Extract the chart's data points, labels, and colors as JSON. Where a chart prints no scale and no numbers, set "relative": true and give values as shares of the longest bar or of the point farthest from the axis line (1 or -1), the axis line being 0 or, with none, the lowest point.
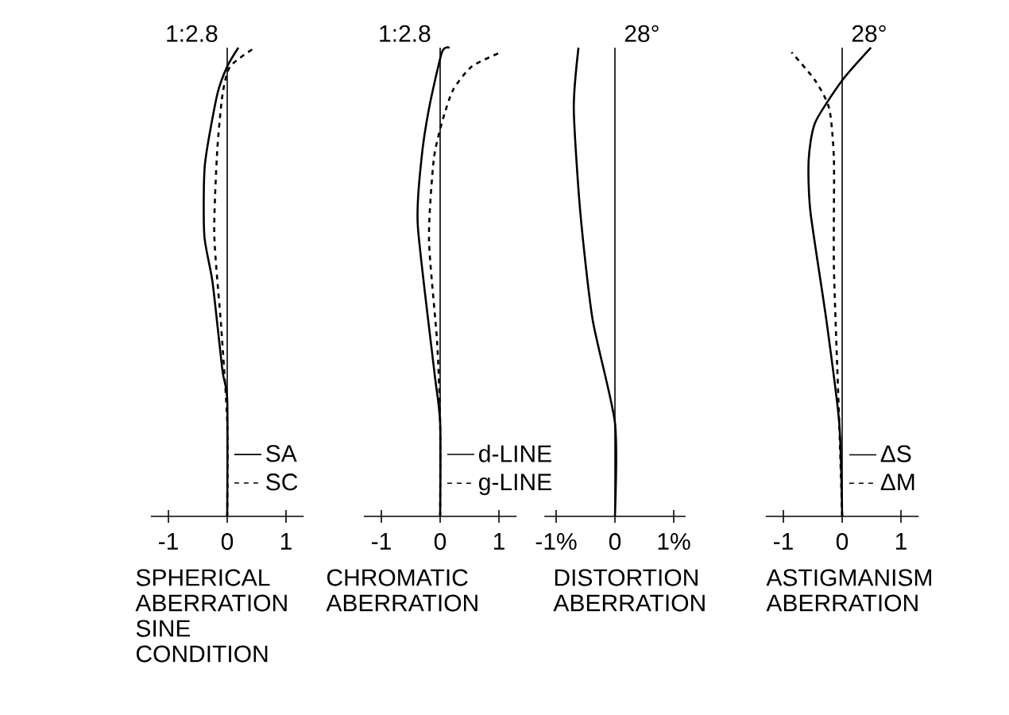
{
  "chart_data": [
    {
      "type": "line",
      "xlabel": "SPHERICAL ABERRATION SINE CONDITION",
      "annotations": [
        "1:2.8"
      ],
      "relative": true,
      "xlim": [
        -1.3,
        1.3
      ],
      "xticks": [
        -1,
        0,
        1
      ],
      "tick_labels": "x",
      "legend": "bottom right",
      "series": [
        {
          "name": "SA",
          "color": "#000000",
          "line_style": "solid",
          "x": [
            0,
            0,
            -0.08,
            -0.25,
            -0.39,
            -0.38,
            -0.17,
            0,
            0.19
          ],
          "values": [
            0,
            0.25,
            0.31,
            0.5,
            0.6,
            0.75,
            0.9,
            0.96,
            1.0
          ]
        },
        {
          "name": "SC",
          "color": "#000000",
          "line_style": "dashed",
          "x": [
            0,
            0,
            -0.1,
            -0.22,
            -0.17,
            -0.08,
            0.05,
            0.47
          ],
          "values": [
            0,
            0.2,
            0.4,
            0.6,
            0.78,
            0.9,
            0.96,
            1.0
          ]
        }
      ]
    },
    {
      "type": "line",
      "xlabel": "CHROMATIC ABERRATION",
      "annotations": [
        "1:2.8"
      ],
      "relative": true,
      "xlim": [
        -1.3,
        1.3
      ],
      "xticks": [
        -1,
        0,
        1
      ],
      "tick_labels": "x",
      "legend": "bottom right",
      "series": [
        {
          "name": "d-LINE",
          "color": "#000000",
          "line_style": "solid",
          "x": [
            0,
            0,
            -0.1,
            -0.38,
            -0.32,
            -0.19,
            0.03,
            0.16
          ],
          "values": [
            0,
            0.2,
            0.31,
            0.62,
            0.76,
            0.87,
            0.99,
            1.0
          ]
        },
        {
          "name": "g-LINE",
          "color": "#000000",
          "line_style": "dashed",
          "x": [
            0,
            0,
            -0.05,
            -0.19,
            -0.11,
            0.03,
            0.22,
            0.54,
            1.03
          ],
          "values": [
            0,
            0.2,
            0.37,
            0.59,
            0.76,
            0.84,
            0.91,
            0.96,
            0.99
          ]
        }
      ]
    },
    {
      "type": "line",
      "xlabel": "DISTORTION ABERRATION",
      "annotations": [
        "28°"
      ],
      "relative": true,
      "xlim": [
        -1.2,
        1.2
      ],
      "xticks": [
        {
          "value": -1,
          "label": "-1%"
        },
        0,
        {
          "value": 1,
          "label": "1%"
        }
      ],
      "tick_labels": "x",
      "series": [
        {
          "color": "#000000",
          "line_style": "solid",
          "x": [
            0,
            0,
            -0.38,
            -0.59,
            -0.7,
            -0.62
          ],
          "values": [
            0,
            0.2,
            0.42,
            0.65,
            0.87,
            1.0
          ]
        }
      ]
    },
    {
      "type": "line",
      "xlabel": "ASTIGMANISM ABERRATION",
      "annotations": [
        "28°"
      ],
      "relative": true,
      "xlim": [
        -1.3,
        1.3
      ],
      "xticks": [
        -1,
        0,
        1
      ],
      "tick_labels": "x",
      "legend": "bottom right",
      "series": [
        {
          "name": "ΔS",
          "color": "#000000",
          "line_style": "solid",
          "x": [
            0,
            -0.05,
            -0.27,
            -0.54,
            -0.57,
            -0.46,
            0,
            0.49
          ],
          "values": [
            0,
            0.2,
            0.42,
            0.65,
            0.76,
            0.84,
            0.93,
            1.0
          ]
        },
        {
          "name": "ΔM",
          "color": "#000000",
          "line_style": "dashed",
          "x": [
            0,
            -0.05,
            -0.14,
            -0.14,
            -0.22,
            -0.46,
            -0.86
          ],
          "values": [
            0,
            0.2,
            0.53,
            0.76,
            0.87,
            0.93,
            0.99
          ]
        }
      ]
    }
  ]
}
